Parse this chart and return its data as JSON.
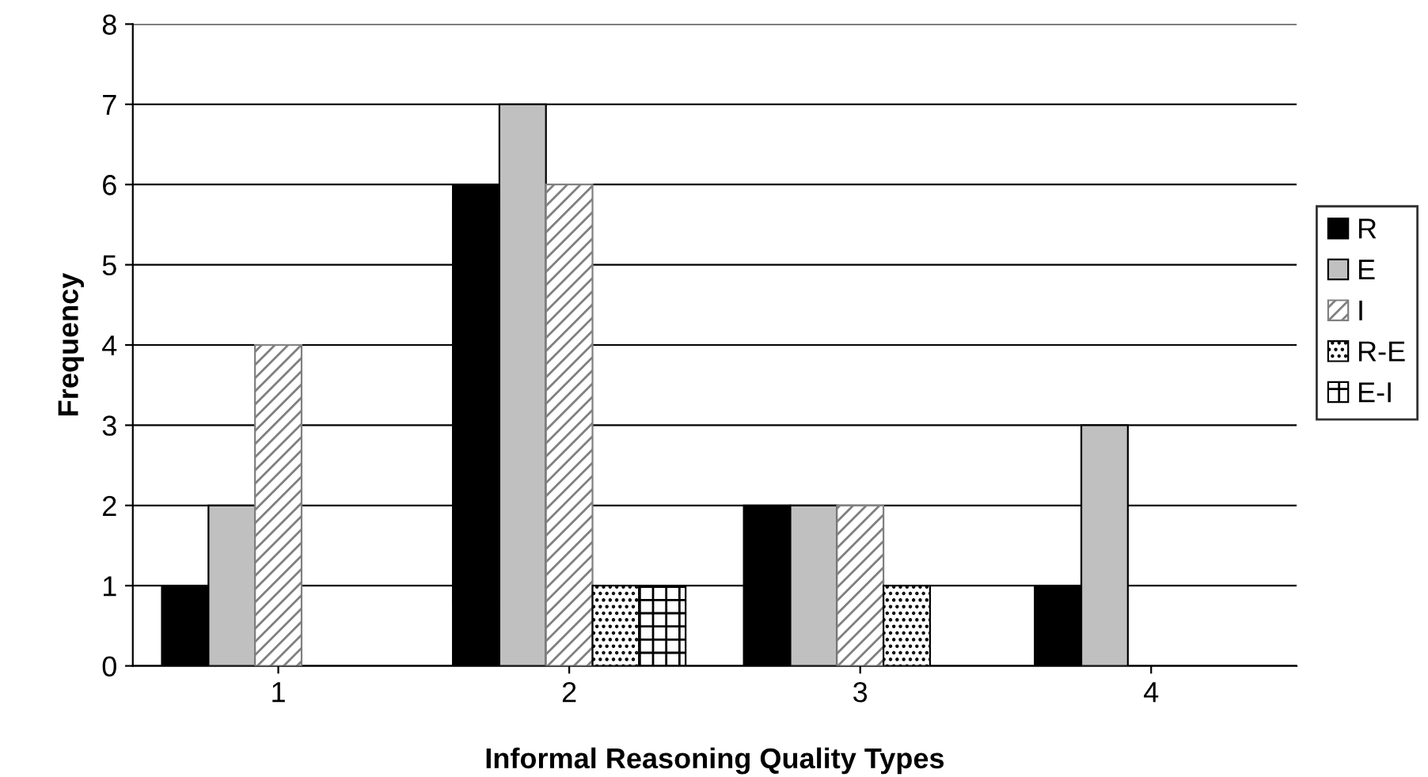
{
  "chart_data": {
    "type": "bar",
    "xlabel": "Informal Reasoning Quality Types",
    "ylabel": "Frequency",
    "categories": [
      "1",
      "2",
      "3",
      "4"
    ],
    "series": [
      {
        "name": "R",
        "color": "#000000",
        "values": [
          1,
          6,
          2,
          1
        ]
      },
      {
        "name": "E",
        "color": "#c0c0c0",
        "values": [
          2,
          7,
          2,
          3
        ]
      },
      {
        "name": "I",
        "color": "#808080",
        "values": [
          4,
          6,
          2,
          null
        ]
      },
      {
        "name": "R-E",
        "color": "#000000",
        "values": [
          null,
          1,
          1,
          null
        ]
      },
      {
        "name": "E-I",
        "color": "#000000",
        "values": [
          null,
          1,
          null,
          null
        ]
      }
    ],
    "ylim": [
      0,
      8
    ],
    "yticks": [
      0,
      1,
      2,
      3,
      4,
      5,
      6,
      7,
      8
    ],
    "grid": "y",
    "legend": "right"
  }
}
